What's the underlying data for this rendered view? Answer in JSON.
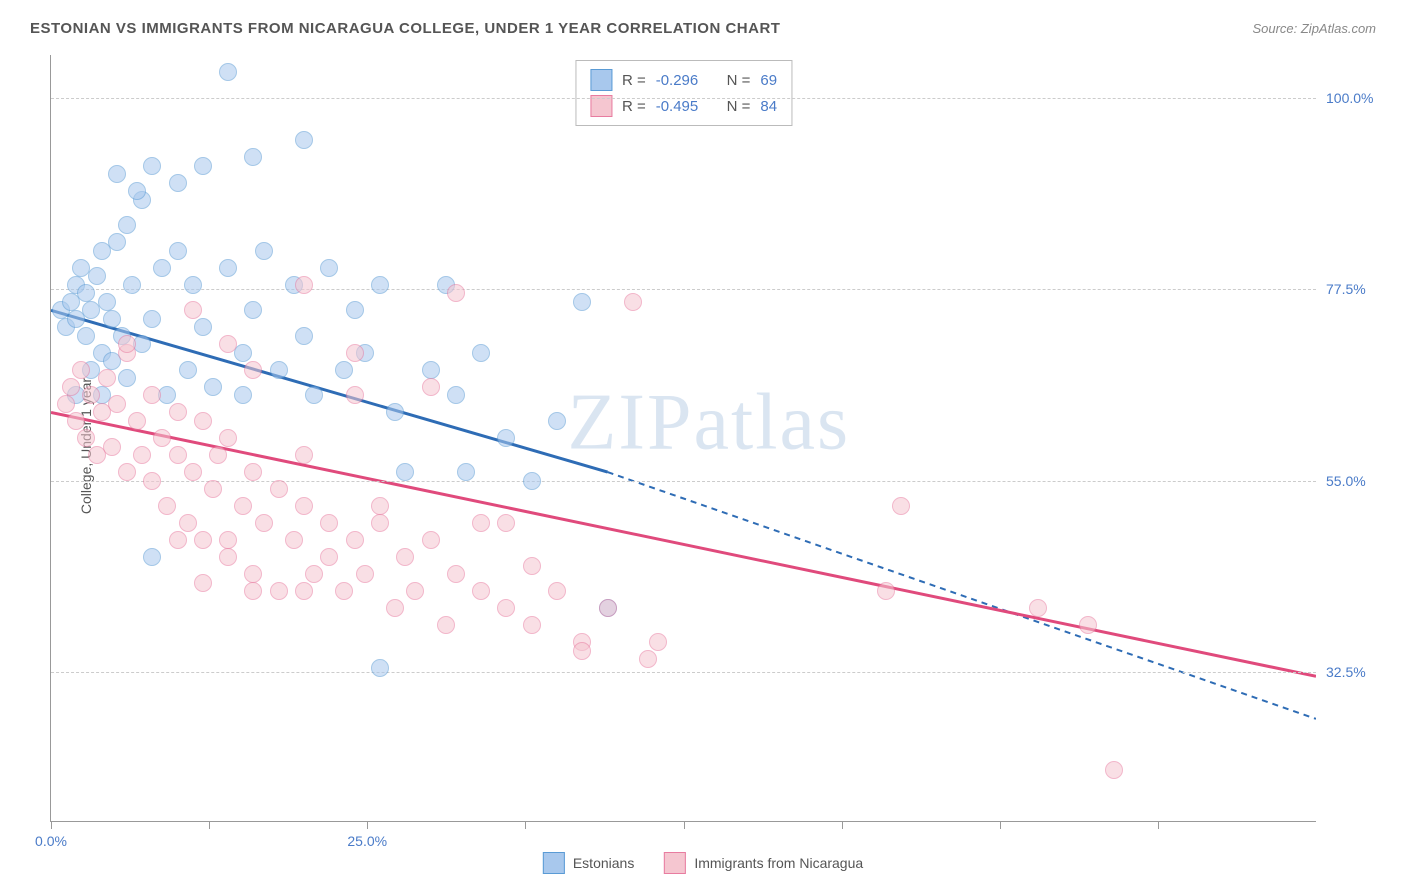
{
  "header": {
    "title": "ESTONIAN VS IMMIGRANTS FROM NICARAGUA COLLEGE, UNDER 1 YEAR CORRELATION CHART",
    "source": "Source: ZipAtlas.com"
  },
  "chart": {
    "type": "scatter",
    "y_label": "College, Under 1 year",
    "background_color": "#ffffff",
    "grid_color": "#cccccc",
    "border_color": "#999999",
    "x_range": [
      0,
      25
    ],
    "y_range": [
      15,
      105
    ],
    "x_ticks": [
      {
        "pos": 0.0,
        "label": "0.0%"
      },
      {
        "pos": 12.5,
        "label": ""
      },
      {
        "pos": 25.0,
        "label": "25.0%"
      },
      {
        "pos": 37.5,
        "label": ""
      },
      {
        "pos": 50.0,
        "label": ""
      },
      {
        "pos": 62.5,
        "label": ""
      },
      {
        "pos": 75.0,
        "label": ""
      },
      {
        "pos": 87.5,
        "label": ""
      }
    ],
    "y_ticks": [
      {
        "val": 32.5,
        "label": "32.5%"
      },
      {
        "val": 55.0,
        "label": "55.0%"
      },
      {
        "val": 77.5,
        "label": "77.5%"
      },
      {
        "val": 100.0,
        "label": "100.0%"
      }
    ],
    "watermark": "ZIPatlas",
    "series": [
      {
        "name": "Estonians",
        "color_fill": "#a8c8ed",
        "color_stroke": "#5a9bd5",
        "trend_color": "#2e6cb5",
        "R": "-0.296",
        "N": "69",
        "trend": {
          "x1": 0,
          "y1": 75,
          "x2_solid": 11,
          "y2_solid": 56,
          "x2_dash": 25,
          "y2_dash": 27
        },
        "points": [
          [
            0.2,
            75
          ],
          [
            0.3,
            73
          ],
          [
            0.4,
            76
          ],
          [
            0.5,
            78
          ],
          [
            0.5,
            74
          ],
          [
            0.6,
            80
          ],
          [
            0.7,
            72
          ],
          [
            0.7,
            77
          ],
          [
            0.8,
            68
          ],
          [
            0.8,
            75
          ],
          [
            0.9,
            79
          ],
          [
            1.0,
            70
          ],
          [
            1.0,
            82
          ],
          [
            1.1,
            76
          ],
          [
            1.2,
            74
          ],
          [
            1.2,
            69
          ],
          [
            1.3,
            83
          ],
          [
            1.4,
            72
          ],
          [
            1.5,
            85
          ],
          [
            1.5,
            67
          ],
          [
            1.6,
            78
          ],
          [
            1.8,
            88
          ],
          [
            1.8,
            71
          ],
          [
            2.0,
            74
          ],
          [
            2.0,
            92
          ],
          [
            2.2,
            80
          ],
          [
            2.3,
            65
          ],
          [
            2.5,
            82
          ],
          [
            2.5,
            90
          ],
          [
            2.7,
            68
          ],
          [
            2.8,
            78
          ],
          [
            3.0,
            73
          ],
          [
            3.0,
            92
          ],
          [
            3.2,
            66
          ],
          [
            3.5,
            80
          ],
          [
            3.5,
            103
          ],
          [
            3.8,
            70
          ],
          [
            4.0,
            93
          ],
          [
            4.0,
            75
          ],
          [
            4.2,
            82
          ],
          [
            4.5,
            68
          ],
          [
            4.8,
            78
          ],
          [
            5.0,
            95
          ],
          [
            5.0,
            72
          ],
          [
            5.2,
            65
          ],
          [
            5.5,
            80
          ],
          [
            5.8,
            68
          ],
          [
            6.0,
            75
          ],
          [
            6.2,
            70
          ],
          [
            6.5,
            78
          ],
          [
            6.8,
            63
          ],
          [
            7.0,
            56
          ],
          [
            7.5,
            68
          ],
          [
            7.8,
            78
          ],
          [
            8.0,
            65
          ],
          [
            8.2,
            56
          ],
          [
            8.5,
            70
          ],
          [
            9.0,
            60
          ],
          [
            9.5,
            55
          ],
          [
            10.0,
            62
          ],
          [
            11.0,
            40
          ],
          [
            6.5,
            33
          ],
          [
            2.0,
            46
          ],
          [
            0.5,
            65
          ],
          [
            1.0,
            65
          ],
          [
            10.5,
            76
          ],
          [
            1.3,
            91
          ],
          [
            1.7,
            89
          ],
          [
            3.8,
            65
          ]
        ]
      },
      {
        "name": "Immigrants from Nicaragua",
        "color_fill": "#f5c6d0",
        "color_stroke": "#e87ca0",
        "trend_color": "#e04a7c",
        "R": "-0.495",
        "N": "84",
        "trend": {
          "x1": 0,
          "y1": 63,
          "x2_solid": 25,
          "y2_solid": 32,
          "x2_dash": 25,
          "y2_dash": 32
        },
        "points": [
          [
            0.3,
            64
          ],
          [
            0.4,
            66
          ],
          [
            0.5,
            62
          ],
          [
            0.6,
            68
          ],
          [
            0.7,
            60
          ],
          [
            0.8,
            65
          ],
          [
            0.9,
            58
          ],
          [
            1.0,
            63
          ],
          [
            1.1,
            67
          ],
          [
            1.2,
            59
          ],
          [
            1.3,
            64
          ],
          [
            1.5,
            70
          ],
          [
            1.5,
            56
          ],
          [
            1.7,
            62
          ],
          [
            1.8,
            58
          ],
          [
            2.0,
            65
          ],
          [
            2.0,
            55
          ],
          [
            2.2,
            60
          ],
          [
            2.3,
            52
          ],
          [
            2.5,
            58
          ],
          [
            2.5,
            63
          ],
          [
            2.7,
            50
          ],
          [
            2.8,
            56
          ],
          [
            3.0,
            62
          ],
          [
            3.0,
            48
          ],
          [
            3.2,
            54
          ],
          [
            3.3,
            58
          ],
          [
            3.5,
            60
          ],
          [
            3.5,
            46
          ],
          [
            3.8,
            52
          ],
          [
            4.0,
            56
          ],
          [
            4.0,
            44
          ],
          [
            4.2,
            50
          ],
          [
            4.5,
            54
          ],
          [
            4.5,
            42
          ],
          [
            4.8,
            48
          ],
          [
            5.0,
            52
          ],
          [
            5.0,
            58
          ],
          [
            5.2,
            44
          ],
          [
            5.5,
            50
          ],
          [
            5.5,
            46
          ],
          [
            5.8,
            42
          ],
          [
            6.0,
            48
          ],
          [
            6.0,
            65
          ],
          [
            6.2,
            44
          ],
          [
            6.5,
            50
          ],
          [
            6.8,
            40
          ],
          [
            7.0,
            46
          ],
          [
            7.2,
            42
          ],
          [
            7.5,
            48
          ],
          [
            7.8,
            38
          ],
          [
            8.0,
            44
          ],
          [
            8.0,
            77
          ],
          [
            8.5,
            42
          ],
          [
            9.0,
            40
          ],
          [
            9.5,
            38
          ],
          [
            10.0,
            42
          ],
          [
            10.5,
            36
          ],
          [
            11.0,
            40
          ],
          [
            11.5,
            76
          ],
          [
            12.0,
            36
          ],
          [
            16.5,
            42
          ],
          [
            16.8,
            52
          ],
          [
            19.5,
            40
          ],
          [
            20.5,
            38
          ],
          [
            21.0,
            21
          ],
          [
            1.5,
            71
          ],
          [
            2.8,
            75
          ],
          [
            3.5,
            71
          ],
          [
            4.0,
            68
          ],
          [
            5.0,
            78
          ],
          [
            6.0,
            70
          ],
          [
            7.5,
            66
          ],
          [
            8.5,
            50
          ],
          [
            9.5,
            45
          ],
          [
            10.5,
            35
          ],
          [
            11.8,
            34
          ],
          [
            3.0,
            43
          ],
          [
            4.0,
            42
          ],
          [
            5.0,
            42
          ],
          [
            2.5,
            48
          ],
          [
            3.5,
            48
          ],
          [
            6.5,
            52
          ],
          [
            9.0,
            50
          ]
        ]
      }
    ],
    "legend": {
      "stats_text": {
        "r_label": "R =",
        "n_label": "N ="
      }
    }
  }
}
